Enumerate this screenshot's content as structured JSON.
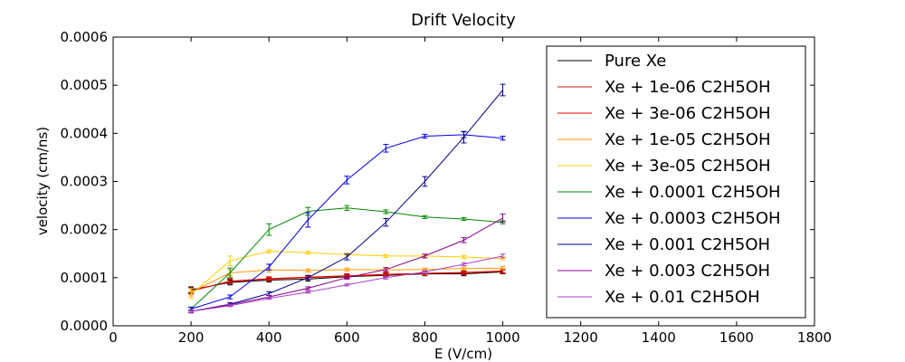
{
  "chart_data": {
    "type": "line",
    "title": "Drift Velocity",
    "xlabel": "E (V/cm)",
    "ylabel": "velocity (cm/ns)",
    "xlim": [
      0,
      1800
    ],
    "ylim": [
      0,
      0.0006
    ],
    "x_ticks": [
      0,
      200,
      400,
      600,
      800,
      1000,
      1200,
      1400,
      1600,
      1800
    ],
    "x_tick_labels": [
      "0",
      "200",
      "400",
      "600",
      "800",
      "1000",
      "1200",
      "1400",
      "1600",
      "1800"
    ],
    "y_ticks": [
      0,
      0.0001,
      0.0002,
      0.0003,
      0.0004,
      0.0005,
      0.0006
    ],
    "y_tick_labels": [
      "0.0000",
      "0.0001",
      "0.0002",
      "0.0003",
      "0.0004",
      "0.0005",
      "0.0006"
    ],
    "grid": false,
    "legend_position": "top-right",
    "x": [
      200,
      300,
      400,
      500,
      600,
      700,
      800,
      900,
      1000
    ],
    "series": [
      {
        "name": "Pure Xe",
        "color": "#000000",
        "values": [
          7.5e-05,
          9e-05,
          9.5e-05,
          9.7e-05,
          0.000102,
          0.000105,
          0.000108,
          0.000108,
          0.000112
        ],
        "errors": [
          6e-06,
          5e-06,
          4e-06,
          4e-06,
          4e-06,
          4e-06,
          4e-06,
          4e-06,
          4e-06
        ]
      },
      {
        "name": "Xe + 1e-06 C2H5OH",
        "color": "#cc2200",
        "values": [
          7.3e-05,
          9.2e-05,
          9.7e-05,
          0.0001,
          0.000103,
          0.000106,
          0.000109,
          0.00011,
          0.000113
        ],
        "errors": [
          6e-06,
          5e-06,
          4e-06,
          4e-06,
          4e-06,
          4e-06,
          4e-06,
          4e-06,
          4e-06
        ]
      },
      {
        "name": "Xe + 3e-06 C2H5OH",
        "color": "#ee0000",
        "values": [
          7.2e-05,
          9.3e-05,
          9.8e-05,
          0.000101,
          0.000104,
          0.000107,
          0.000109,
          0.000111,
          0.000114
        ],
        "errors": [
          6e-06,
          5e-06,
          4e-06,
          4e-06,
          4e-06,
          4e-06,
          4e-06,
          4e-06,
          4e-06
        ]
      },
      {
        "name": "Xe + 1e-05 C2H5OH",
        "color": "#ff9900",
        "values": [
          7e-05,
          0.00011,
          0.000116,
          0.000115,
          0.000117,
          0.000116,
          0.000117,
          0.000119,
          0.00012
        ],
        "errors": [
          8e-06,
          6e-06,
          4e-06,
          3e-06,
          3e-06,
          3e-06,
          3e-06,
          3e-06,
          3e-06
        ]
      },
      {
        "name": "Xe + 3e-05 C2H5OH",
        "color": "#ffcc00",
        "values": [
          6.5e-05,
          0.000135,
          0.000155,
          0.000152,
          0.000148,
          0.000145,
          0.000145,
          0.000143,
          0.00014
        ],
        "errors": [
          8e-06,
          1e-05,
          3e-06,
          3e-06,
          3e-06,
          3e-06,
          3e-06,
          3e-06,
          3e-06
        ]
      },
      {
        "name": "Xe + 0.0001 C2H5OH",
        "color": "#008800",
        "values": [
          3.5e-05,
          0.00011,
          0.0002,
          0.000238,
          0.000245,
          0.000237,
          0.000226,
          0.000222,
          0.000215
        ],
        "errors": [
          4e-06,
          1e-05,
          1.2e-05,
          8e-06,
          5e-06,
          4e-06,
          3e-06,
          3e-06,
          3e-06
        ]
      },
      {
        "name": "Xe + 0.0003 C2H5OH",
        "color": "#0000ee",
        "values": [
          3.5e-05,
          6e-05,
          0.000122,
          0.00022,
          0.000303,
          0.000369,
          0.000394,
          0.000397,
          0.00039
        ],
        "errors": [
          3e-06,
          4e-06,
          6e-06,
          1.5e-05,
          8e-06,
          8e-06,
          4e-06,
          6e-06,
          4e-06
        ]
      },
      {
        "name": "Xe + 0.001 C2H5OH",
        "color": "#000088",
        "values": [
          3e-05,
          4.5e-05,
          6.7e-05,
          0.0001,
          0.000143,
          0.000215,
          0.0003,
          0.000392,
          0.00049
        ],
        "errors": [
          3e-06,
          3e-06,
          4e-06,
          4e-06,
          6e-06,
          8e-06,
          1e-05,
          1.2e-05,
          1.2e-05
        ]
      },
      {
        "name": "Xe + 0.003 C2H5OH",
        "color": "#880088",
        "values": [
          3e-05,
          4.4e-05,
          6e-05,
          7.8e-05,
          0.0001,
          0.000117,
          0.000145,
          0.000178,
          0.000224
        ],
        "errors": [
          3e-06,
          3e-06,
          3e-06,
          3e-06,
          3e-06,
          4e-06,
          4e-06,
          5e-06,
          8e-06
        ]
      },
      {
        "name": "Xe + 0.01 C2H5OH",
        "color": "#aa44cc",
        "values": [
          3e-05,
          4.2e-05,
          5.7e-05,
          7e-05,
          8.5e-05,
          0.0001,
          0.000112,
          0.000128,
          0.000145
        ],
        "errors": [
          2e-06,
          2e-06,
          2e-06,
          2e-06,
          2e-06,
          3e-06,
          3e-06,
          3e-06,
          4e-06
        ]
      }
    ]
  }
}
